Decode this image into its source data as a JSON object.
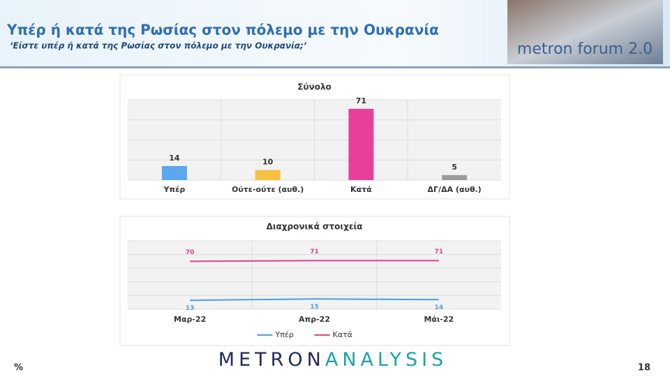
{
  "header": {
    "title": "Υπέρ ή κατά της Ρωσίας στον πόλεμο με την Ουκρανία",
    "subtitle": "‘Είστε υπέρ ή κατά της Ρωσίας στον πόλεμο με την Ουκρανία;’",
    "logo": "metron forum 2.0"
  },
  "chart_data": [
    {
      "type": "bar",
      "title": "Σύνολο",
      "categories": [
        "Υπέρ",
        "Ούτε-ούτε (αυθ.)",
        "Κατά",
        "ΔΓ/ΔΑ (αυθ.)"
      ],
      "values": [
        14,
        10,
        71,
        5
      ],
      "colors": [
        "#5aa7f2",
        "#f6c140",
        "#e8409a",
        "#9b9b9b"
      ],
      "ylim": [
        0,
        80
      ],
      "yticks": [
        0,
        20,
        40,
        60,
        80
      ],
      "show_ytick_labels": false,
      "grid": true
    },
    {
      "type": "line",
      "title": "Διαχρονικά στοιχεία",
      "categories": [
        "Μαρ-22",
        "Απρ-22",
        "Μάι-22"
      ],
      "series": [
        {
          "name": "Υπέρ",
          "color": "#4a9ee2",
          "values": [
            13,
            15,
            14
          ],
          "label_position": "below"
        },
        {
          "name": "Κατά",
          "color": "#e0408e",
          "values": [
            70,
            71,
            71
          ],
          "label_position": "above"
        }
      ],
      "ylim": [
        0,
        100
      ],
      "yticks": [
        0,
        20,
        40,
        60,
        80,
        100
      ],
      "show_ytick_labels": false,
      "grid": true,
      "legend": "bottom"
    }
  ],
  "footer": {
    "unit": "%",
    "brand_left": "METRON",
    "brand_right": "ANALYSIS",
    "page": "18"
  }
}
